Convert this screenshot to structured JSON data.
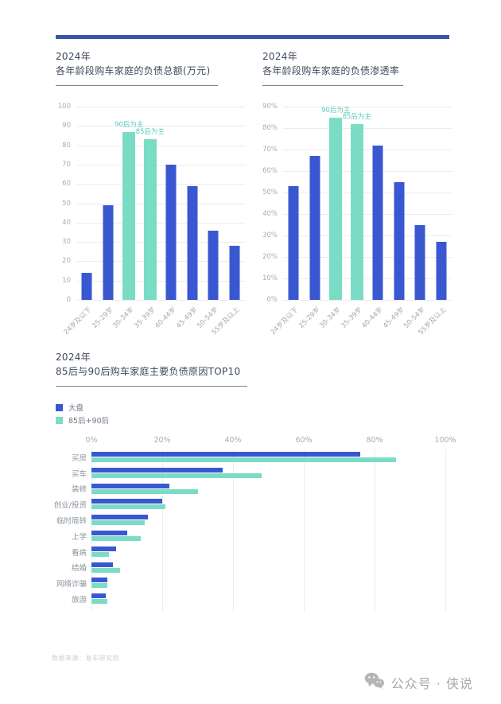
{
  "page": {
    "footer_source": "数据来源：易车研究院",
    "watermark": "公众号 · 侠说"
  },
  "colors": {
    "primary_blue": "#3a57d2",
    "teal": "#7bdcc6",
    "annotation_teal": "#56cdb8",
    "top_rule_blue": "#3757a6",
    "gridline": "#ececec",
    "axis_text": "#a9adb4",
    "title_text": "#3d4a5c",
    "watermark_gray": "#a9a9a9"
  },
  "chart_data": [
    {
      "type": "bar",
      "title": "2024年",
      "subtitle": "各年龄段购车家庭的负债总额(万元)",
      "categories": [
        "24岁及以下",
        "25-29岁",
        "30-34岁",
        "35-39岁",
        "40-44岁",
        "45-49岁",
        "50-54岁",
        "55岁及以上"
      ],
      "values": [
        14,
        49,
        87,
        83,
        70,
        59,
        36,
        28
      ],
      "highlight_indices": [
        2,
        3
      ],
      "annotations": [
        {
          "index": 2,
          "text": "90后为主"
        },
        {
          "index": 3,
          "text": "85后为主"
        }
      ],
      "ylim": [
        0,
        100
      ],
      "ytick_step": 10,
      "ytick_suffix": "",
      "grid": true,
      "legend_position": "none",
      "bar_color": "#3a57d2",
      "highlight_color": "#7bdcc6"
    },
    {
      "type": "bar",
      "title": "2024年",
      "subtitle": "各年龄段购车家庭的负债渗透率",
      "categories": [
        "24岁及以下",
        "25-29岁",
        "30-34岁",
        "35-39岁",
        "40-44岁",
        "45-49岁",
        "50-54岁",
        "55岁及以上"
      ],
      "values": [
        53,
        67,
        85,
        82,
        72,
        55,
        35,
        27
      ],
      "highlight_indices": [
        2,
        3
      ],
      "annotations": [
        {
          "index": 2,
          "text": "90后为主"
        },
        {
          "index": 3,
          "text": "85后为主"
        }
      ],
      "ylim": [
        0,
        90
      ],
      "ytick_step": 10,
      "ytick_suffix": "%",
      "grid": true,
      "legend_position": "none",
      "bar_color": "#3a57d2",
      "highlight_color": "#7bdcc6"
    },
    {
      "type": "bar-horizontal",
      "title": "2024年",
      "subtitle": "85后与90后购车家庭主要负债原因TOP10",
      "categories": [
        "买房",
        "买车",
        "装修",
        "创业/投资",
        "临时周转",
        "上学",
        "看病",
        "结婚",
        "网络诈骗",
        "旅游"
      ],
      "series": [
        {
          "name": "大盘",
          "color": "#3a57d2",
          "values": [
            76,
            37,
            22,
            20,
            16,
            10,
            7,
            6,
            4.5,
            4
          ]
        },
        {
          "name": "85后+90后",
          "color": "#7bdcc6",
          "values": [
            86,
            48,
            30,
            21,
            15,
            14,
            5,
            8,
            4.5,
            4.5
          ]
        }
      ],
      "xlim": [
        0,
        100
      ],
      "xtick_step": 20,
      "xtick_suffix": "%",
      "grid": true,
      "legend_position": "top-left"
    }
  ]
}
